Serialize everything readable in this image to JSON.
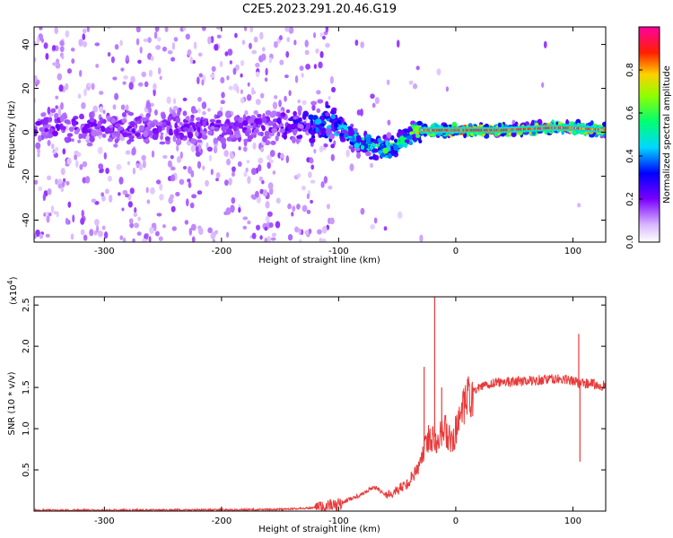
{
  "figure_title": "C2E5.2023.291.20.46.G19",
  "chart_data": [
    {
      "type": "heatmap",
      "title": "",
      "xlabel": "Height of straight line (km)",
      "ylabel": "Frequency (Hz)",
      "xlim": [
        -360,
        128
      ],
      "ylim": [
        -50,
        48
      ],
      "xticks": [
        -300,
        -200,
        -100,
        0,
        100
      ],
      "yticks": [
        -40,
        -20,
        0,
        20,
        40
      ],
      "colorbar": {
        "label": "Normalized spectral amplitude",
        "range": [
          0.0,
          1.0
        ],
        "ticks": [
          "0.0",
          "0.2",
          "0.4",
          "0.6",
          "0.8"
        ],
        "colormap": "rainbow (white, violet, blue, cyan, green, yellow, red, magenta)"
      },
      "ridge": {
        "description": "dominant spectral ridge vs height",
        "x": [
          -360,
          -320,
          -280,
          -240,
          -200,
          -160,
          -130,
          -110,
          -100,
          -90,
          -80,
          -70,
          -60,
          -50,
          -40,
          -30,
          -20,
          0,
          40,
          80,
          100,
          128
        ],
        "y": [
          2,
          2,
          2,
          2,
          2,
          2,
          3,
          4,
          3,
          -2,
          -5,
          -7,
          -8,
          -6,
          -1,
          1,
          1,
          1,
          1,
          2,
          2,
          1
        ],
        "amplitude": [
          0.2,
          0.2,
          0.2,
          0.2,
          0.2,
          0.2,
          0.3,
          0.45,
          0.45,
          0.5,
          0.55,
          0.55,
          0.6,
          0.6,
          0.6,
          0.8,
          0.9,
          0.95,
          0.95,
          0.95,
          0.9,
          0.85
        ]
      }
    },
    {
      "type": "line",
      "title": "",
      "xlabel": "Height of straight line (km)",
      "ylabel": "SNR (10 * v/v)",
      "yscale_note": "(x10",
      "yscale_exponent": "4",
      "yscale_close": ")",
      "xlim": [
        -360,
        128
      ],
      "ylim": [
        0.0,
        2.6
      ],
      "xticks": [
        -300,
        -200,
        -100,
        0,
        100
      ],
      "yticks": [
        0.5,
        1.0,
        1.5,
        2.0,
        2.5
      ],
      "color": "#e83a3a",
      "series": [
        {
          "x": [
            -360,
            -300,
            -200,
            -150,
            -120,
            -100,
            -90,
            -80,
            -70,
            -60,
            -50,
            -40,
            -30,
            -25,
            -20,
            -15,
            -10,
            -5,
            0,
            5,
            10,
            20,
            30,
            40,
            60,
            80,
            90,
            100,
            105,
            108,
            110,
            115,
            120,
            128
          ],
          "y": [
            0.01,
            0.01,
            0.015,
            0.02,
            0.04,
            0.08,
            0.15,
            0.2,
            0.3,
            0.2,
            0.25,
            0.35,
            0.6,
            0.85,
            0.9,
            0.9,
            1.0,
            0.85,
            0.95,
            1.15,
            1.35,
            1.5,
            1.55,
            1.57,
            1.58,
            1.6,
            1.6,
            1.58,
            1.55,
            1.58,
            1.55,
            1.55,
            1.53,
            1.52
          ]
        }
      ],
      "spikes": [
        {
          "x": -27,
          "y": 1.75
        },
        {
          "x": -18,
          "y": 2.6
        },
        {
          "x": -12,
          "y": 1.5
        },
        {
          "x": 105,
          "y": 2.15
        },
        {
          "x": 106,
          "y": 0.6
        }
      ]
    }
  ]
}
